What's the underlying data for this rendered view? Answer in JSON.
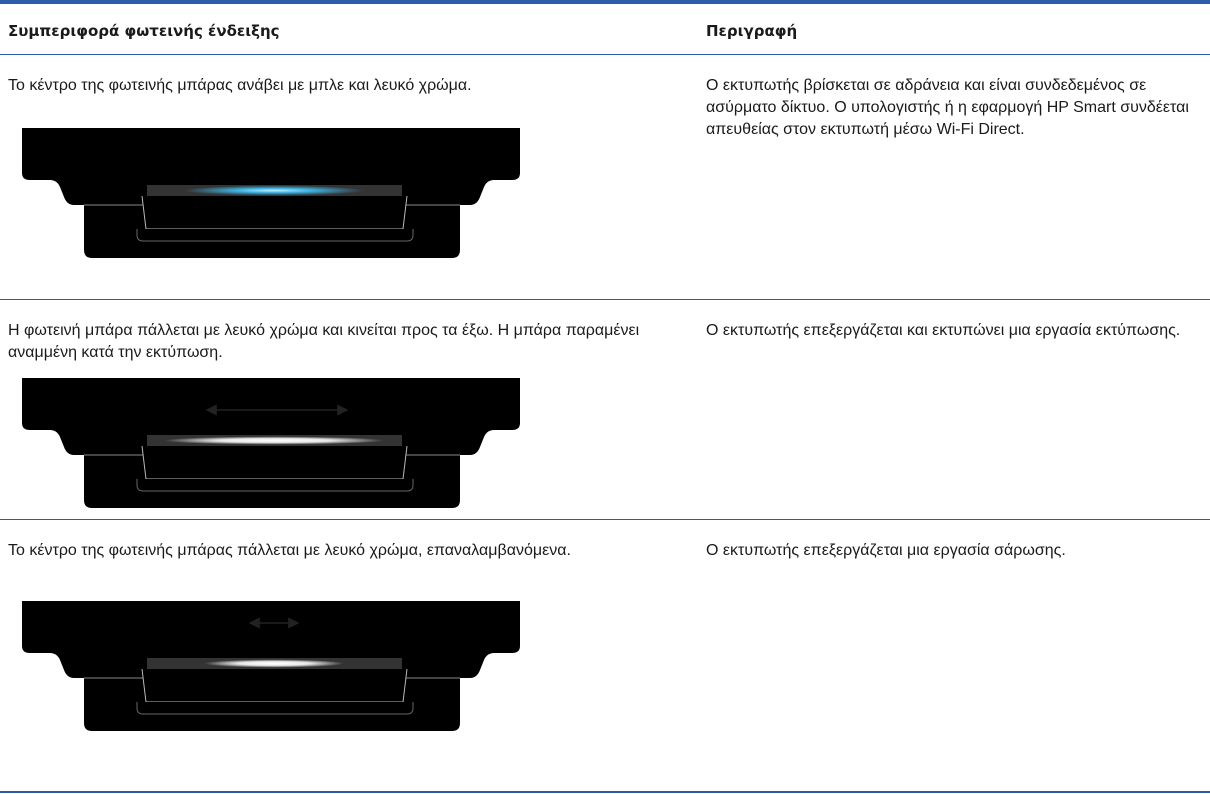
{
  "table": {
    "header": [
      "Συμπεριφορά φωτεινής ένδειξης",
      "Περιγραφή"
    ],
    "rows": [
      [
        "Το κέντρο της φωτεινής μπάρας ανάβει με μπλε και λευκό χρώμα.",
        "Ο εκτυπωτής βρίσκεται σε αδράνεια και είναι συνδεδεμένος σε ασύρματο δίκτυο. Ο υπολογιστής ή η εφαρμογή HP Smart συνδέεται απευθείας στον εκτυπωτή μέσω Wi-Fi Direct."
      ],
      [
        "Η φωτεινή μπάρα πάλλεται με λευκό χρώμα και κινείται προς τα έξω. Η μπάρα παραμένει αναμμένη κατά την εκτύπωση.",
        "Ο εκτυπωτής επεξεργάζεται και εκτυπώνει μια εργασία εκτύπωσης."
      ],
      [
        "Το κέντρο της φωτεινής μπάρας πάλλεται με λευκό χρώμα, επαναλαμβανόμενα.",
        "Ο εκτυπωτής επεξεργάζεται μια εργασία σάρωσης."
      ]
    ]
  }
}
